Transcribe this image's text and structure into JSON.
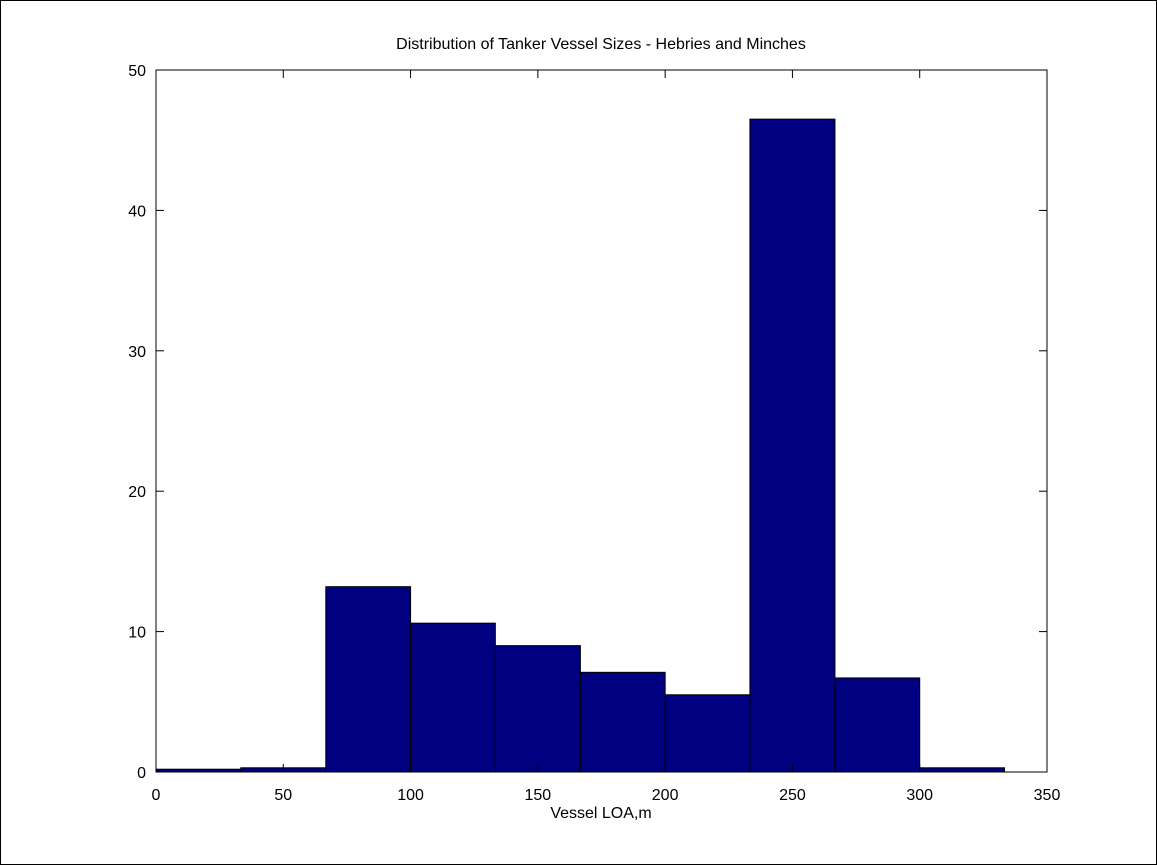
{
  "chart_data": {
    "type": "bar",
    "title": "Distribution of Tanker Vessel Sizes - Hebries and Minches",
    "xlabel": "Vessel LOA,m",
    "ylabel": "",
    "xlim": [
      0,
      350
    ],
    "ylim": [
      0,
      50
    ],
    "xticks": [
      0,
      50,
      100,
      150,
      200,
      250,
      300,
      350
    ],
    "yticks": [
      0,
      10,
      20,
      30,
      40,
      50
    ],
    "bin_edges": [
      0,
      33.3,
      66.7,
      100,
      133.3,
      166.7,
      200,
      233.3,
      266.7,
      300,
      333.3
    ],
    "values": [
      0.2,
      0.3,
      13.2,
      10.6,
      9.0,
      7.1,
      5.5,
      46.5,
      6.7,
      0.3
    ],
    "bar_color": "#000080",
    "edge_color": "#000000",
    "grid": false
  }
}
